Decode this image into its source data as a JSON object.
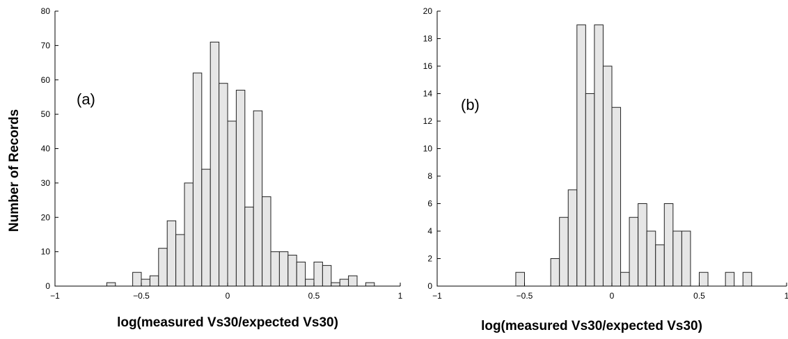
{
  "figure": {
    "ylabel": "Number of Records"
  },
  "chart_data": [
    {
      "type": "bar",
      "panel_label": "(a)",
      "xlabel": "log(measured Vs30/expected Vs30)",
      "ylabel": "Number of Records",
      "xlim": [
        -1,
        1
      ],
      "ylim": [
        0,
        80
      ],
      "xticks": [
        -1,
        -0.5,
        0,
        0.5,
        1
      ],
      "xtick_labels": [
        "−1",
        "−0.5",
        "0",
        "0.5",
        "1"
      ],
      "yticks": [
        0,
        10,
        20,
        30,
        40,
        50,
        60,
        70,
        80
      ],
      "bin_width": 0.05,
      "bin_centers": [
        -0.675,
        -0.525,
        -0.475,
        -0.425,
        -0.375,
        -0.325,
        -0.275,
        -0.225,
        -0.175,
        -0.125,
        -0.075,
        -0.025,
        0.025,
        0.075,
        0.125,
        0.175,
        0.225,
        0.275,
        0.325,
        0.375,
        0.425,
        0.475,
        0.525,
        0.575,
        0.625,
        0.675,
        0.725,
        0.825
      ],
      "values": [
        1,
        4,
        2,
        3,
        11,
        19,
        15,
        30,
        62,
        34,
        71,
        59,
        48,
        57,
        23,
        51,
        26,
        10,
        10,
        9,
        7,
        2,
        7,
        6,
        1,
        2,
        3,
        1
      ]
    },
    {
      "type": "bar",
      "panel_label": "(b)",
      "xlabel": "log(measured Vs30/expected Vs30)",
      "ylabel": "",
      "xlim": [
        -1,
        1
      ],
      "ylim": [
        0,
        20
      ],
      "xticks": [
        -1,
        -0.5,
        0,
        0.5,
        1
      ],
      "xtick_labels": [
        "−1",
        "−0.5",
        "0",
        "0.5",
        "1"
      ],
      "yticks": [
        0,
        2,
        4,
        6,
        8,
        10,
        12,
        14,
        16,
        18,
        20
      ],
      "bin_width": 0.05,
      "bin_centers": [
        -0.525,
        -0.325,
        -0.275,
        -0.225,
        -0.175,
        -0.125,
        -0.075,
        -0.025,
        0.025,
        0.075,
        0.125,
        0.175,
        0.225,
        0.275,
        0.325,
        0.375,
        0.425,
        0.525,
        0.675,
        0.775
      ],
      "values": [
        1,
        2,
        5,
        7,
        19,
        14,
        19,
        16,
        13,
        1,
        5,
        6,
        4,
        3,
        6,
        4,
        4,
        1,
        1,
        1
      ]
    }
  ]
}
